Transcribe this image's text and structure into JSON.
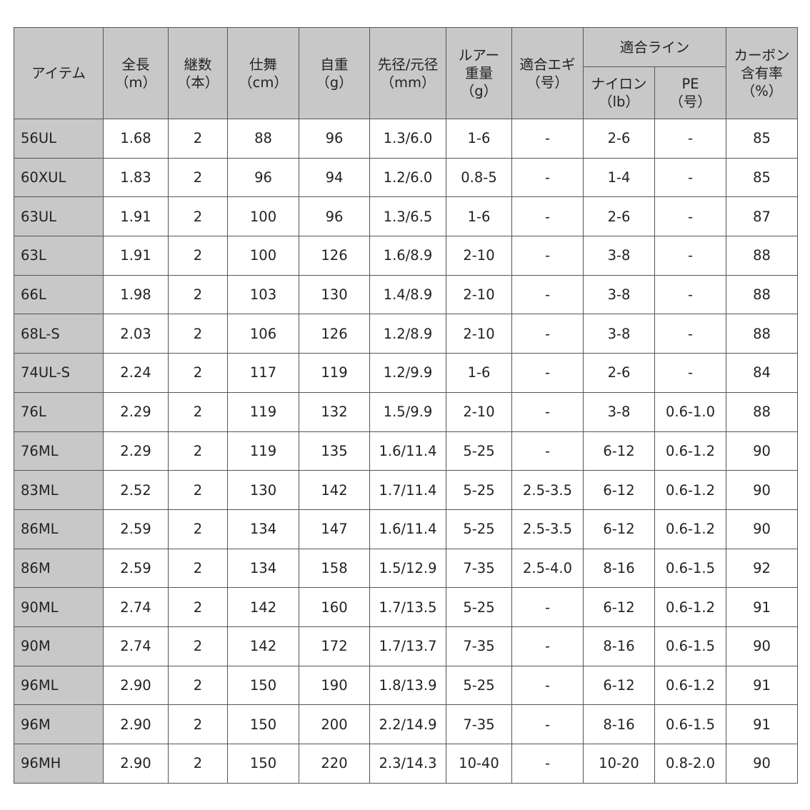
{
  "header": {
    "group": "適合ライン",
    "columns": [
      [
        "アイテム"
      ],
      [
        "全長",
        "（m）"
      ],
      [
        "継数",
        "（本）"
      ],
      [
        "仕舞",
        "（cm）"
      ],
      [
        "自重",
        "（g）"
      ],
      [
        "先径/元径",
        "（mm）"
      ],
      [
        "ルアー",
        "重量",
        "（g）"
      ],
      [
        "適合エギ",
        "（号）"
      ],
      [
        "ナイロン",
        "（lb）"
      ],
      [
        "PE",
        "（号）"
      ],
      [
        "カーボン",
        "含有率",
        "（%）"
      ]
    ]
  },
  "table": {
    "rows": [
      [
        "56UL",
        "1.68",
        "2",
        "88",
        "96",
        "1.3/6.0",
        "1-6",
        "-",
        "2-6",
        "-",
        "85"
      ],
      [
        "60XUL",
        "1.83",
        "2",
        "96",
        "94",
        "1.2/6.0",
        "0.8-5",
        "-",
        "1-4",
        "-",
        "85"
      ],
      [
        "63UL",
        "1.91",
        "2",
        "100",
        "96",
        "1.3/6.5",
        "1-6",
        "-",
        "2-6",
        "-",
        "87"
      ],
      [
        "63L",
        "1.91",
        "2",
        "100",
        "126",
        "1.6/8.9",
        "2-10",
        "-",
        "3-8",
        "-",
        "88"
      ],
      [
        "66L",
        "1.98",
        "2",
        "103",
        "130",
        "1.4/8.9",
        "2-10",
        "-",
        "3-8",
        "-",
        "88"
      ],
      [
        "68L-S",
        "2.03",
        "2",
        "106",
        "126",
        "1.2/8.9",
        "2-10",
        "-",
        "3-8",
        "-",
        "88"
      ],
      [
        "74UL-S",
        "2.24",
        "2",
        "117",
        "119",
        "1.2/9.9",
        "1-6",
        "-",
        "2-6",
        "-",
        "84"
      ],
      [
        "76L",
        "2.29",
        "2",
        "119",
        "132",
        "1.5/9.9",
        "2-10",
        "-",
        "3-8",
        "0.6-1.0",
        "88"
      ],
      [
        "76ML",
        "2.29",
        "2",
        "119",
        "135",
        "1.6/11.4",
        "5-25",
        "-",
        "6-12",
        "0.6-1.2",
        "90"
      ],
      [
        "83ML",
        "2.52",
        "2",
        "130",
        "142",
        "1.7/11.4",
        "5-25",
        "2.5-3.5",
        "6-12",
        "0.6-1.2",
        "90"
      ],
      [
        "86ML",
        "2.59",
        "2",
        "134",
        "147",
        "1.6/11.4",
        "5-25",
        "2.5-3.5",
        "6-12",
        "0.6-1.2",
        "90"
      ],
      [
        "86M",
        "2.59",
        "2",
        "134",
        "158",
        "1.5/12.9",
        "7-35",
        "2.5-4.0",
        "8-16",
        "0.6-1.5",
        "92"
      ],
      [
        "90ML",
        "2.74",
        "2",
        "142",
        "160",
        "1.7/13.5",
        "5-25",
        "-",
        "6-12",
        "0.6-1.2",
        "91"
      ],
      [
        "90M",
        "2.74",
        "2",
        "142",
        "172",
        "1.7/13.7",
        "7-35",
        "-",
        "8-16",
        "0.6-1.5",
        "90"
      ],
      [
        "96ML",
        "2.90",
        "2",
        "150",
        "190",
        "1.8/13.9",
        "5-25",
        "-",
        "6-12",
        "0.6-1.2",
        "91"
      ],
      [
        "96M",
        "2.90",
        "2",
        "150",
        "200",
        "2.2/14.9",
        "7-35",
        "-",
        "8-16",
        "0.6-1.5",
        "91"
      ],
      [
        "96MH",
        "2.90",
        "2",
        "150",
        "220",
        "2.3/14.3",
        "10-40",
        "-",
        "10-20",
        "0.8-2.0",
        "90"
      ]
    ]
  }
}
